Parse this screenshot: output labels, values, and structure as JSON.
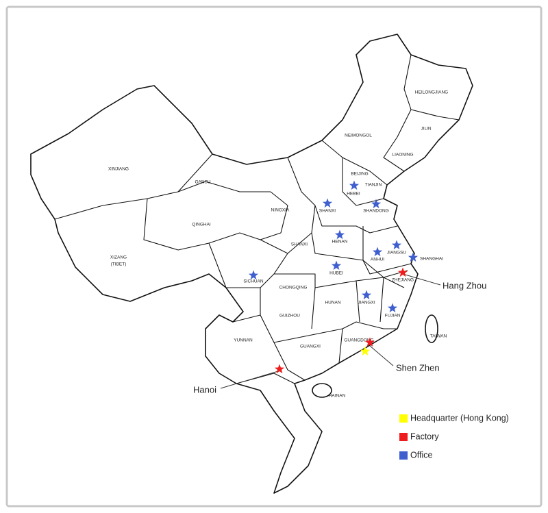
{
  "provinces": [
    {
      "label": "HEILONGJIANG"
    },
    {
      "label": "JILIN"
    },
    {
      "label": "LIAONING"
    },
    {
      "label": "NEIMONGOL"
    },
    {
      "label": "BEIJING"
    },
    {
      "label": "TIANJIN"
    },
    {
      "label": "HEBEI"
    },
    {
      "label": "SHANXI"
    },
    {
      "label": "SHANDONG"
    },
    {
      "label": "NINGXIA"
    },
    {
      "label": "GANSU"
    },
    {
      "label": "XINJIANG"
    },
    {
      "label": "QINGHAI"
    },
    {
      "label": "XIZANG"
    },
    {
      "label": "(TIBET)"
    },
    {
      "label": "SHANXI"
    },
    {
      "label": "HENAN"
    },
    {
      "label": "JIANGSU"
    },
    {
      "label": "SHANGHAI"
    },
    {
      "label": "ANHUI"
    },
    {
      "label": "HUBEI"
    },
    {
      "label": "ZHEJIANG"
    },
    {
      "label": "SICHUAN"
    },
    {
      "label": "CHONGQING"
    },
    {
      "label": "HUNAN"
    },
    {
      "label": "JIANGXI"
    },
    {
      "label": "FUJIAN"
    },
    {
      "label": "GUIZHOU"
    },
    {
      "label": "YUNNAN"
    },
    {
      "label": "GUANGXI"
    },
    {
      "label": "GUANGDONG"
    },
    {
      "label": "TAIWAN"
    },
    {
      "label": "HAINAN"
    }
  ],
  "callouts": [
    {
      "label": "Hang Zhou"
    },
    {
      "label": "Shen Zhen"
    },
    {
      "label": "Hanoi"
    }
  ],
  "legend": [
    {
      "label": "Headquarter (Hong Kong)",
      "color": "#ffff00"
    },
    {
      "label": "Factory",
      "color": "#ee1c1c"
    },
    {
      "label": "Office",
      "color": "#3f5fcf"
    }
  ]
}
